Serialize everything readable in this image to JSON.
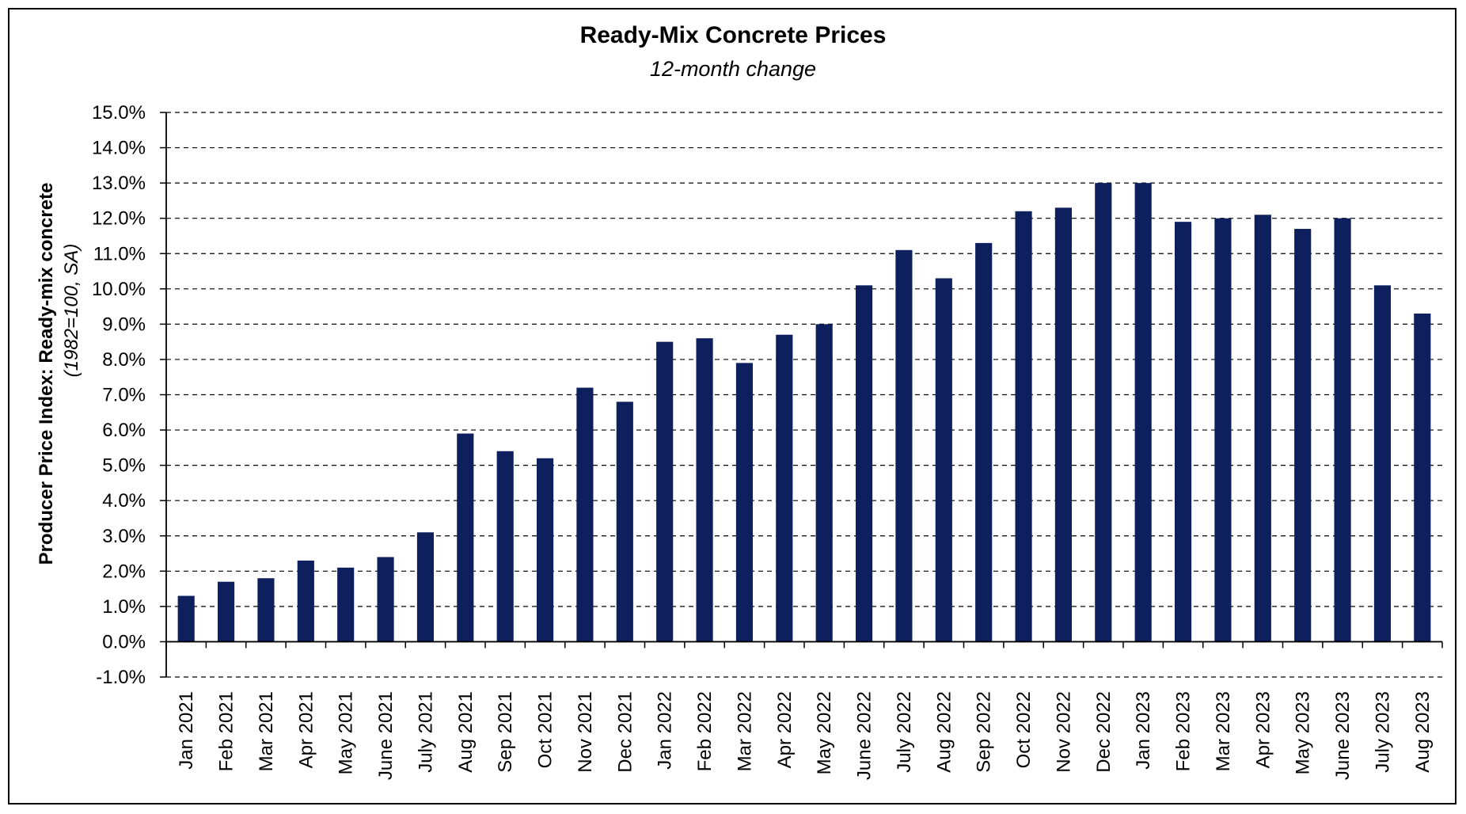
{
  "chart_data": {
    "type": "bar",
    "title": "Ready-Mix Concrete Prices",
    "subtitle": "12-month change",
    "ylabel": "Producer Price Index: Ready-mix concrete",
    "ylabel_sub": "(1982=100, SA)",
    "xlabel": "",
    "ylim": [
      -1.0,
      15.0
    ],
    "y_step": 1.0,
    "y_tick_format": "percent_1dp",
    "grid": true,
    "grid_style": "dashed",
    "legend": "none",
    "bar_color": "#0d1f5c",
    "categories": [
      "Jan 2021",
      "Feb 2021",
      "Mar 2021",
      "Apr 2021",
      "May 2021",
      "June 2021",
      "July 2021",
      "Aug 2021",
      "Sep 2021",
      "Oct 2021",
      "Nov 2021",
      "Dec 2021",
      "Jan 2022",
      "Feb 2022",
      "Mar 2022",
      "Apr 2022",
      "May 2022",
      "June 2022",
      "July 2022",
      "Aug 2022",
      "Sep 2022",
      "Oct 2022",
      "Nov 2022",
      "Dec 2022",
      "Jan 2023",
      "Feb 2023",
      "Mar 2023",
      "Apr 2023",
      "May 2023",
      "June 2023",
      "July 2023",
      "Aug 2023"
    ],
    "values": [
      1.3,
      1.7,
      1.8,
      2.3,
      2.1,
      2.4,
      3.1,
      5.9,
      5.4,
      5.2,
      7.2,
      6.8,
      8.5,
      8.6,
      7.9,
      8.7,
      9.0,
      10.1,
      11.1,
      10.3,
      11.3,
      12.2,
      12.3,
      13.0,
      13.0,
      11.9,
      12.0,
      12.1,
      11.7,
      12.0,
      10.1,
      9.3
    ]
  }
}
